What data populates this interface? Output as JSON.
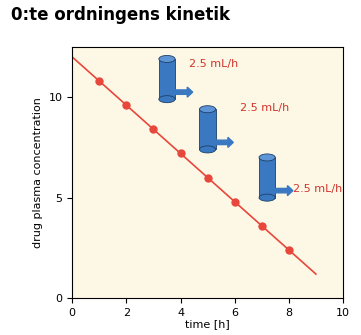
{
  "chart_data": {
    "type": "line",
    "title": "0:te ordningens kinetik",
    "x_label": "time [h]",
    "y_label": "drug plasma concentration",
    "series": [
      {
        "type": "line",
        "color": "#e8473b",
        "x": [
          0,
          9
        ],
        "values": [
          12.0,
          1.2
        ]
      },
      {
        "type": "scatter",
        "color": "#e8473b",
        "marker": "o",
        "x": [
          1,
          2,
          3,
          4,
          5,
          6,
          7,
          8
        ],
        "values": [
          10.8,
          9.6,
          8.4,
          7.2,
          6.0,
          4.8,
          3.6,
          2.4
        ]
      }
    ],
    "annotations": [
      "2.5 mL/h",
      "2.5 mL/h",
      "2.5 mL/h"
    ],
    "xlim": [
      0,
      10
    ],
    "xticks": [
      0,
      2,
      4,
      6,
      8,
      10
    ],
    "ylim": [
      0,
      12.5
    ],
    "yticks": [
      0,
      5,
      10
    ],
    "grid": false
  }
}
